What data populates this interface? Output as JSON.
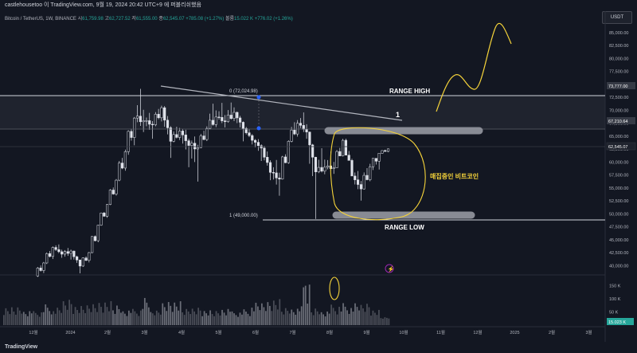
{
  "header": {
    "title": "castlehousetoo 이 TradingView.com, 9월 19, 2024 20:42 UTC+9 에 퍼블리쉬했음",
    "currency_button": "USDT"
  },
  "legend": {
    "symbol": "Bitcoin / TetherUS, 1W, BINANCE",
    "open_label": "시",
    "open": "61,759.98",
    "high_label": "고",
    "high": "62,727.52",
    "low_label": "저",
    "low": "61,555.00",
    "close_label": "종",
    "close": "62,545.07",
    "change": "+785.08 (+1.27%)",
    "volume_label": "볼륨",
    "volume": "15.022 K",
    "volume_change": "+776.02 (+1.26%)"
  },
  "price_axis": {
    "ticks": [
      "85,000.00",
      "82,500.00",
      "80,000.00",
      "77,500.00",
      "75,000.00",
      "72,500.00",
      "70,000.00",
      "67,500.00",
      "65,000.00",
      "62,500.00",
      "60,000.00",
      "57,500.00",
      "55,000.00",
      "52,500.00",
      "50,000.00",
      "47,500.00",
      "45,000.00",
      "42,500.00",
      "40,000.00"
    ],
    "badge_range_high": "73,777.00",
    "badge_line2": "67,210.64",
    "badge_current": "62,545.07"
  },
  "volume_axis": {
    "ticks": [
      "150 K",
      "100 K",
      "50 K"
    ],
    "badge_current": "15.023 K"
  },
  "time_axis": {
    "ticks": [
      "12월",
      "2024",
      "2월",
      "3월",
      "4월",
      "5월",
      "6월",
      "7월",
      "8월",
      "9월",
      "10월",
      "11월",
      "12월",
      "2025",
      "2월",
      "3월"
    ]
  },
  "annotations": {
    "fib_top": "0 (72,024.98)",
    "fib_bottom": "1 (49,000.00)",
    "range_high": "RANGE HIGH",
    "range_low": "RANGE LOW",
    "trendline_label": "1",
    "accumulation_note": "매집중인 비트코인"
  },
  "footer": {
    "brand": "TradingView"
  },
  "colors": {
    "background": "#131722",
    "up": "#26a69a",
    "down": "#ef5350",
    "candle": "#e0e3eb",
    "annotation": "#f5d33a",
    "range_band": "#787b86"
  },
  "chart_data": {
    "type": "candlestick",
    "timeframe": "1W",
    "ylim": [
      38500,
      87000
    ],
    "x_ticks": [
      "12월",
      "2024",
      "2월",
      "3월",
      "4월",
      "5월",
      "6월",
      "7월",
      "8월",
      "9월",
      "10월",
      "11월",
      "12월",
      "2025",
      "2월",
      "3월"
    ],
    "weekly_ohlc_approx": [
      [
        38000,
        41000,
        37500,
        40500
      ],
      [
        40500,
        44000,
        40000,
        43500
      ],
      [
        43500,
        44500,
        41500,
        42200
      ],
      [
        42200,
        43500,
        41000,
        42800
      ],
      [
        42800,
        43000,
        38500,
        39900
      ],
      [
        39900,
        42800,
        39500,
        42500
      ],
      [
        42500,
        48000,
        42200,
        47800
      ],
      [
        47800,
        52000,
        47500,
        51800
      ],
      [
        51800,
        57000,
        51500,
        56500
      ],
      [
        56500,
        63000,
        56000,
        62000
      ],
      [
        62000,
        69000,
        60500,
        68500
      ],
      [
        68500,
        73777,
        66000,
        68000
      ],
      [
        68000,
        69500,
        64500,
        67200
      ],
      [
        67200,
        71500,
        66500,
        70500
      ],
      [
        70500,
        71300,
        60800,
        64000
      ],
      [
        64000,
        67500,
        63500,
        66000
      ],
      [
        66000,
        67000,
        59000,
        63200
      ],
      [
        63200,
        64500,
        56500,
        62800
      ],
      [
        62800,
        67500,
        62500,
        66500
      ],
      [
        66500,
        71900,
        66000,
        68700
      ],
      [
        68700,
        71500,
        66700,
        67800
      ],
      [
        67800,
        72024,
        67300,
        69600
      ],
      [
        69600,
        70000,
        64000,
        66500
      ],
      [
        66500,
        67200,
        63400,
        64200
      ],
      [
        64200,
        64800,
        60200,
        62700
      ],
      [
        62700,
        63800,
        56500,
        58000
      ],
      [
        58000,
        60500,
        53500,
        56700
      ],
      [
        56700,
        64500,
        56500,
        64000
      ],
      [
        64000,
        69000,
        63500,
        67500
      ],
      [
        67500,
        70000,
        64500,
        65800
      ],
      [
        65800,
        66000,
        49000,
        58100
      ],
      [
        58100,
        62700,
        57500,
        59000
      ],
      [
        59000,
        61800,
        57900,
        58900
      ],
      [
        58900,
        64900,
        58800,
        64200
      ],
      [
        64200,
        65000,
        57700,
        57300
      ],
      [
        57300,
        59000,
        52550,
        54800
      ],
      [
        54800,
        60500,
        54500,
        59100
      ],
      [
        59100,
        61500,
        57500,
        61700
      ],
      [
        61700,
        62727,
        61555,
        62545
      ]
    ],
    "levels": {
      "range_high": 73777,
      "level_2": 67210.64,
      "current": 62545.07,
      "fib_0": 72024.98,
      "fib_1": 49000
    }
  }
}
